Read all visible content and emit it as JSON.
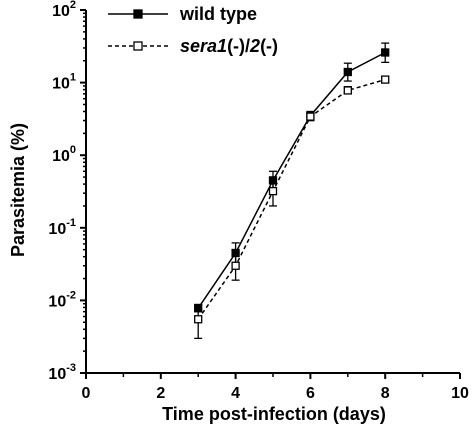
{
  "chart_data": {
    "type": "line",
    "xlabel": "Time post-infection (days)",
    "ylabel": "Parasitemia (%)",
    "xlim": [
      0,
      10
    ],
    "ylim": [
      0.001,
      100
    ],
    "yscale": "log",
    "xticks": [
      "0",
      "2",
      "4",
      "6",
      "8",
      "10"
    ],
    "yticks": [
      {
        "base": "10",
        "exp": "2",
        "value": 100
      },
      {
        "base": "10",
        "exp": "1",
        "value": 10
      },
      {
        "base": "10",
        "exp": "0",
        "value": 1
      },
      {
        "base": "10",
        "exp": "-1",
        "value": 0.1
      },
      {
        "base": "10",
        "exp": "-2",
        "value": 0.01
      },
      {
        "base": "10",
        "exp": "-3",
        "value": 0.001
      }
    ],
    "grid": false,
    "legend_position": "top-left",
    "series": [
      {
        "name": "wild type",
        "name_parts": [
          {
            "text": "wild type",
            "italic": false
          }
        ],
        "line": "solid",
        "marker": "filled-square",
        "x": [
          3,
          4,
          5,
          6,
          7,
          8
        ],
        "y": [
          0.0078,
          0.045,
          0.45,
          3.5,
          14,
          26
        ],
        "err_low": [
          0.007,
          0.033,
          0.33,
          3.0,
          10.5,
          19
        ],
        "err_high": [
          0.0088,
          0.062,
          0.6,
          4.0,
          18.5,
          35
        ]
      },
      {
        "name": "sera1(-)/2(-)",
        "name_parts": [
          {
            "text": "sera1",
            "italic": true
          },
          {
            "text": "(-)/",
            "italic": false
          },
          {
            "text": "2",
            "italic": true
          },
          {
            "text": "(-)",
            "italic": false
          }
        ],
        "line": "dashed",
        "marker": "open-square",
        "x": [
          3,
          4,
          5,
          6,
          7,
          8
        ],
        "y": [
          0.0055,
          0.03,
          0.32,
          3.4,
          7.8,
          11
        ],
        "err_low": [
          0.003,
          0.019,
          0.2,
          3.0,
          7.0,
          10
        ],
        "err_high": [
          0.0073,
          0.045,
          0.42,
          3.8,
          8.8,
          12.2
        ]
      }
    ]
  }
}
